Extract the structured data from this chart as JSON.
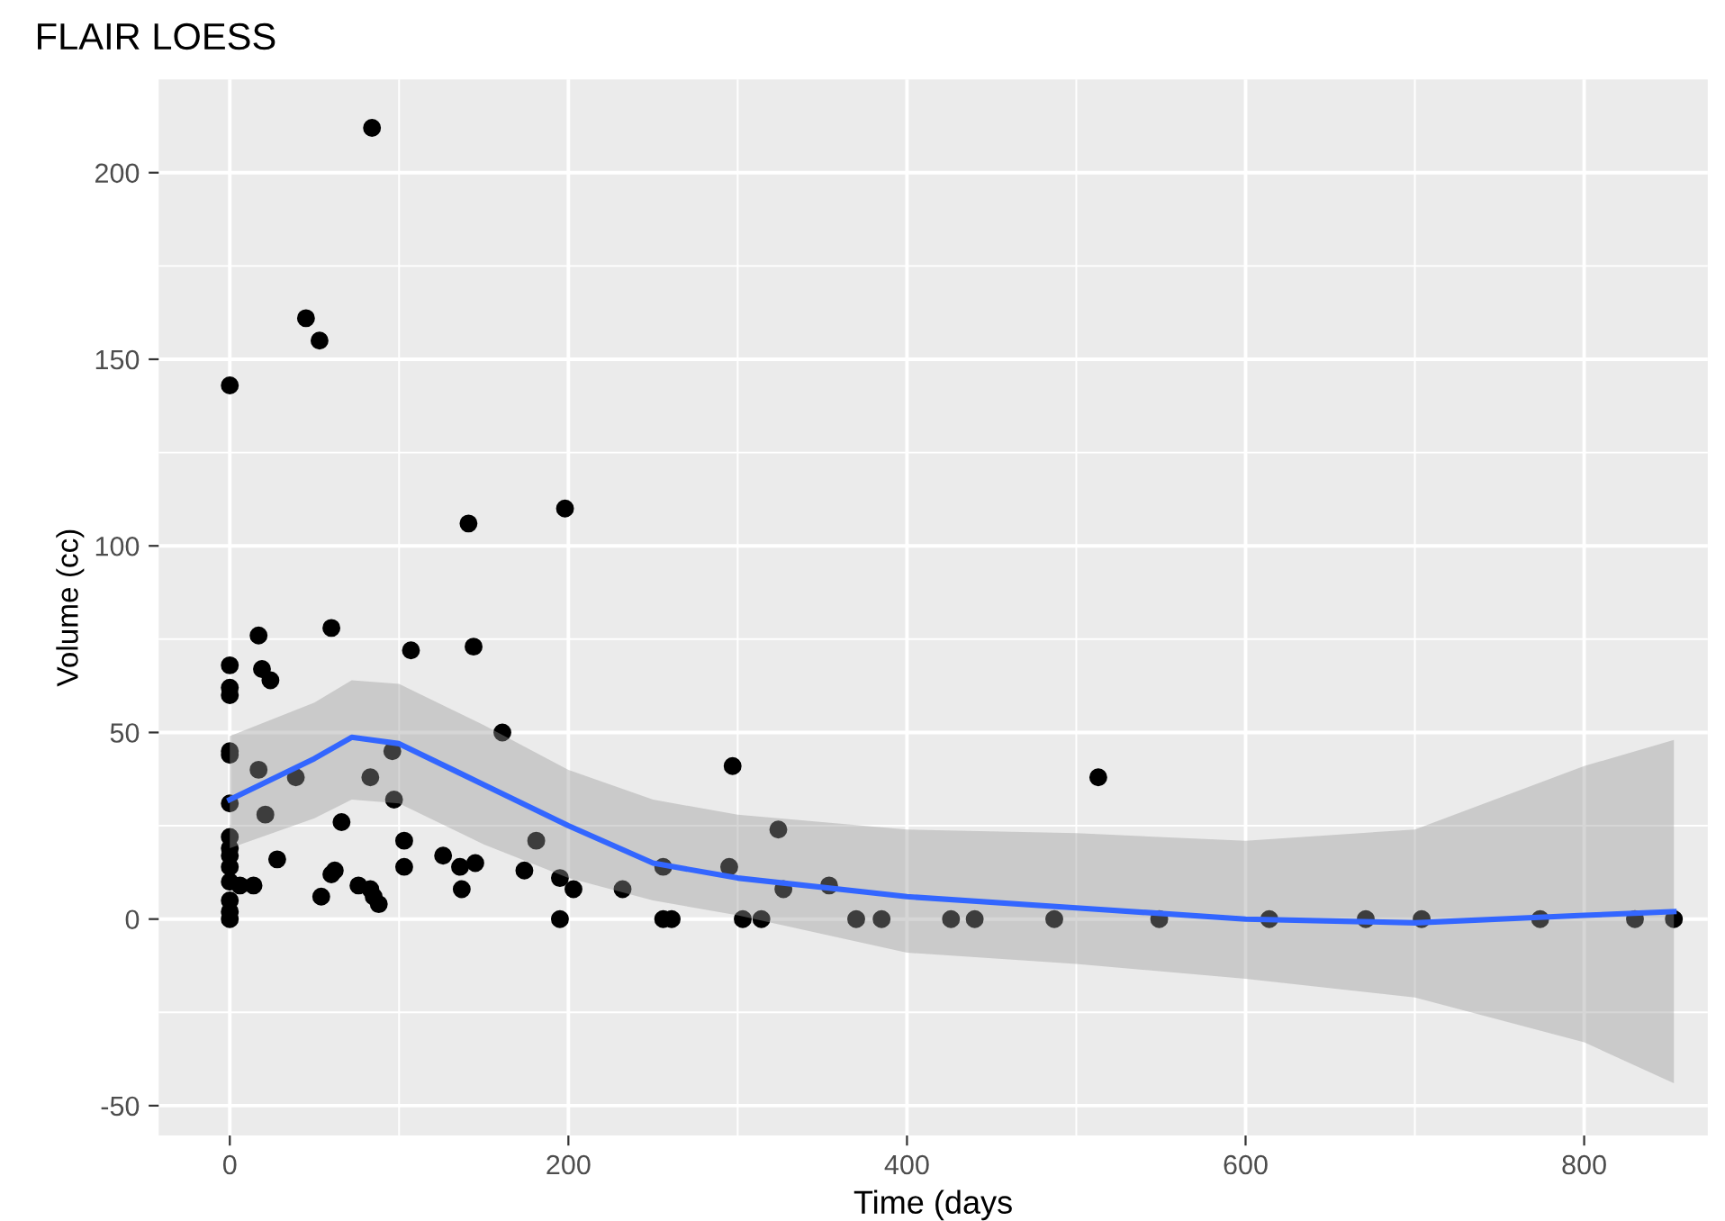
{
  "chart_data": {
    "type": "scatter",
    "title": "FLAIR LOESS",
    "xlabel": "Time (days",
    "ylabel": "Volume (cc)",
    "xlim": [
      -42,
      873
    ],
    "ylim": [
      -58,
      225
    ],
    "xticks": [
      0,
      200,
      400,
      600,
      800
    ],
    "yticks": [
      -50,
      0,
      50,
      100,
      150,
      200
    ],
    "grid": true,
    "marker": "circle",
    "series": [
      {
        "color": "#000000",
        "x": [
          0,
          84,
          45,
          53,
          0,
          0,
          0,
          17,
          19,
          24,
          60,
          107,
          141,
          144,
          198,
          161,
          0,
          0,
          0,
          17,
          39,
          83,
          96,
          97,
          66,
          21,
          28,
          6,
          14,
          54,
          60,
          62,
          103,
          103,
          126,
          136,
          137,
          145,
          76,
          83,
          85,
          88,
          0,
          0,
          0,
          0,
          0,
          0,
          0,
          0,
          174,
          181,
          195,
          203,
          232,
          256,
          256,
          261,
          195,
          297,
          295,
          324,
          327,
          354,
          303,
          314,
          370,
          385,
          426,
          440,
          487,
          513,
          549,
          614,
          671,
          704,
          774,
          830,
          853
        ],
        "values": [
          143,
          212,
          161,
          155,
          68,
          62,
          60,
          76,
          67,
          64,
          78,
          72,
          106,
          73,
          110,
          50,
          45,
          44,
          31,
          40,
          38,
          38,
          45,
          32,
          26,
          28,
          16,
          9,
          9,
          6,
          12,
          13,
          21,
          14,
          17,
          14,
          8,
          15,
          9,
          8,
          6,
          4,
          22,
          19,
          17,
          14,
          10,
          5,
          2,
          0,
          13,
          21,
          11,
          8,
          8,
          14,
          0,
          0,
          0,
          41,
          14,
          24,
          8,
          9,
          0,
          0,
          0,
          0,
          0,
          0,
          0,
          38,
          0,
          0,
          0,
          0,
          0,
          0,
          0
        ]
      },
      {
        "type": "line",
        "color": "#3366ff",
        "marker": "none",
        "x": [
          0,
          50,
          72,
          100,
          150,
          200,
          250,
          300,
          400,
          500,
          600,
          700,
          800,
          853
        ],
        "values": [
          32,
          43,
          48.7,
          47,
          36,
          25,
          15,
          11,
          6,
          3,
          0,
          -1,
          1,
          2
        ],
        "lower": [
          19,
          27,
          32,
          31,
          20,
          11,
          5,
          1,
          -9,
          -12,
          -16,
          -21,
          -33,
          -44
        ],
        "upper": [
          49,
          58,
          64,
          63,
          52,
          40,
          32,
          28,
          24,
          23,
          21,
          24,
          41,
          48
        ]
      }
    ]
  }
}
